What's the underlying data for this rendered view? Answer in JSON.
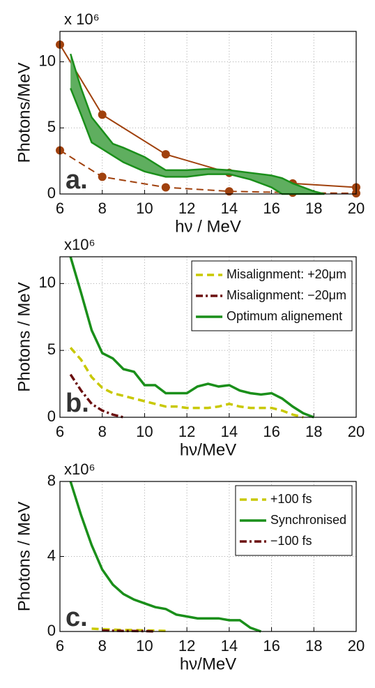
{
  "chart_data": [
    {
      "type": "line",
      "multiplier": "x 10⁶",
      "ylabel": "Photons/MeV",
      "xlabel": "hν / MeV",
      "annotation": "a.",
      "xlim": [
        6,
        20
      ],
      "xticks": [
        6,
        8,
        10,
        12,
        14,
        16,
        18,
        20
      ],
      "ylim": [
        0,
        12.3
      ],
      "yticks": [
        0,
        5,
        10
      ],
      "grid": true,
      "series": [
        {
          "color": "#a0410d",
          "dash": "solid",
          "markers": true,
          "x": [
            6,
            8,
            11,
            14,
            17,
            20
          ],
          "values": [
            11.3,
            6,
            3,
            1.6,
            0.8,
            0.5
          ]
        },
        {
          "color": "#a0410d",
          "dash": "dashed",
          "markers": true,
          "x": [
            6,
            8,
            11,
            14,
            17,
            20
          ],
          "values": [
            3.3,
            1.3,
            0.5,
            0.2,
            0.1,
            0.05
          ]
        },
        {
          "color": "#1a8f1a",
          "fill": "#5fae5f",
          "x": [
            6.5,
            7,
            7.5,
            8,
            8.5,
            9,
            10,
            11,
            12,
            13,
            14,
            15,
            16,
            16.5,
            17,
            18,
            18.5
          ],
          "upper": [
            10.6,
            8.0,
            5.8,
            4.8,
            3.8,
            3.5,
            2.8,
            1.8,
            1.8,
            1.9,
            1.8,
            1.6,
            1.4,
            1.2,
            0.8,
            0.2,
            0
          ],
          "lower": [
            8.0,
            6.0,
            3.9,
            3.4,
            2.9,
            2.4,
            1.7,
            1.3,
            1.3,
            1.5,
            1.5,
            1.1,
            0.5,
            0,
            0,
            0,
            0
          ]
        }
      ]
    },
    {
      "type": "line",
      "multiplier": "x10⁶",
      "ylabel": "Photons / MeV",
      "xlabel": "hν/MeV",
      "annotation": "b.",
      "xlim": [
        6,
        20
      ],
      "xticks": [
        6,
        8,
        10,
        12,
        14,
        16,
        18,
        20
      ],
      "ylim": [
        0,
        12
      ],
      "yticks": [
        0,
        5,
        10
      ],
      "grid": true,
      "legend": "upper right",
      "series": [
        {
          "name": "Misalignment: +20μm",
          "color": "#c8c800",
          "dash": "dashed",
          "x": [
            6.5,
            7,
            7.5,
            8,
            8.5,
            9,
            9.5,
            10,
            10.5,
            11,
            11.5,
            12,
            12.5,
            13,
            13.5,
            14,
            14.5,
            15,
            15.5,
            16,
            16.5,
            17,
            17.5
          ],
          "values": [
            5.2,
            4.3,
            3.0,
            2.2,
            1.8,
            1.6,
            1.4,
            1.2,
            1.0,
            0.8,
            0.8,
            0.7,
            0.7,
            0.7,
            0.8,
            1.0,
            0.8,
            0.7,
            0.7,
            0.7,
            0.5,
            0.2,
            0
          ]
        },
        {
          "name": "Misalignment: −20μm",
          "color": "#6b0f0f",
          "dash": "dashdot",
          "x": [
            6.5,
            7,
            7.5,
            8,
            8.5,
            9
          ],
          "values": [
            3.2,
            2.0,
            1.0,
            0.5,
            0.2,
            0
          ]
        },
        {
          "name": "Optimum alignement",
          "color": "#1a8f1a",
          "dash": "solid",
          "x": [
            6.5,
            7,
            7.5,
            8,
            8.5,
            9,
            9.5,
            10,
            10.5,
            11,
            11.5,
            12,
            12.5,
            13,
            13.5,
            14,
            14.5,
            15,
            15.5,
            16,
            16.5,
            17,
            17.5,
            18
          ],
          "values": [
            12,
            9.3,
            6.5,
            4.8,
            4.4,
            3.6,
            3.4,
            2.4,
            2.4,
            1.8,
            1.8,
            1.8,
            2.3,
            2.5,
            2.3,
            2.4,
            2.0,
            1.8,
            1.7,
            1.8,
            1.4,
            0.8,
            0.3,
            0
          ]
        }
      ]
    },
    {
      "type": "line",
      "multiplier": "x10⁶",
      "ylabel": "Photons / MeV",
      "xlabel": "hν/MeV",
      "annotation": "c.",
      "xlim": [
        6,
        20
      ],
      "xticks": [
        6,
        8,
        10,
        12,
        14,
        16,
        18,
        20
      ],
      "ylim": [
        0,
        8
      ],
      "yticks": [
        0,
        4,
        8
      ],
      "grid": true,
      "legend": "upper right",
      "series": [
        {
          "name": "+100 fs",
          "color": "#c8c800",
          "dash": "dashed",
          "x": [
            7.5,
            8,
            8.5,
            9,
            9.5,
            10,
            10.5,
            11
          ],
          "values": [
            0.15,
            0.12,
            0.1,
            0.08,
            0.08,
            0.06,
            0.05,
            0.03
          ]
        },
        {
          "name": "Synchronised",
          "color": "#1a8f1a",
          "dash": "solid",
          "x": [
            6.5,
            7,
            7.5,
            8,
            8.5,
            9,
            9.5,
            10,
            10.5,
            11,
            11.5,
            12,
            12.5,
            13,
            13.5,
            14,
            14.5,
            15,
            15.5
          ],
          "values": [
            8,
            6.2,
            4.6,
            3.3,
            2.5,
            2.0,
            1.7,
            1.5,
            1.3,
            1.2,
            0.9,
            0.8,
            0.7,
            0.7,
            0.7,
            0.6,
            0.6,
            0.2,
            0
          ]
        },
        {
          "name": "−100 fs",
          "color": "#6b0f0f",
          "dash": "dashdot",
          "x": [
            8,
            9,
            10,
            10.5
          ],
          "values": [
            0.05,
            0.03,
            0.02,
            0
          ]
        }
      ]
    }
  ]
}
